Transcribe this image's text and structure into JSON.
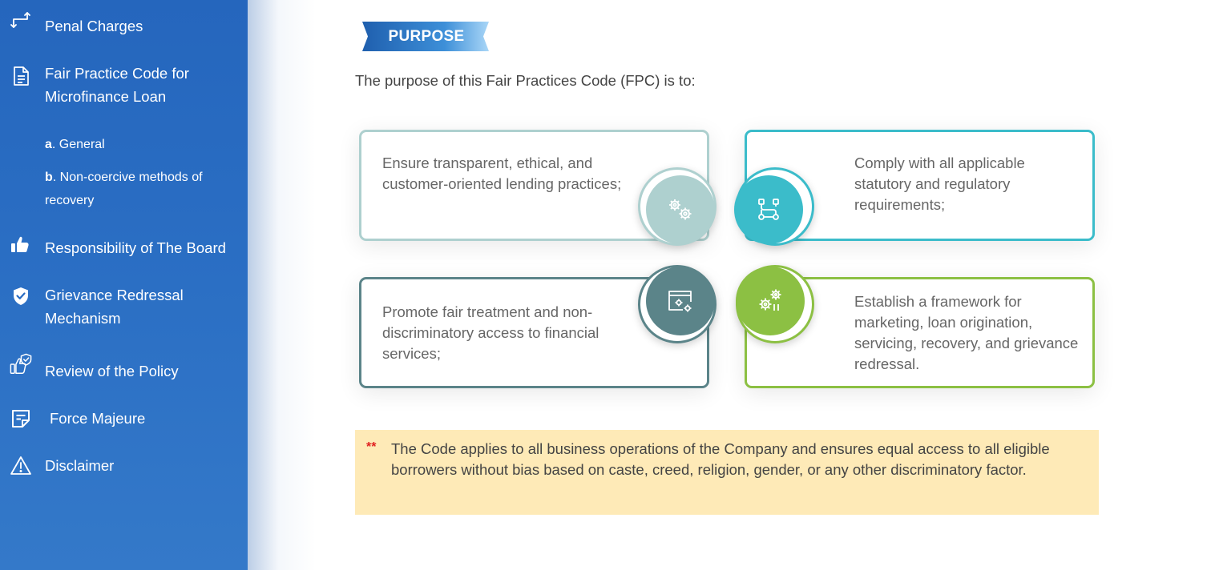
{
  "sidebar": {
    "items": [
      {
        "label": "Penal Charges",
        "icon": "transfer-arrows-icon"
      },
      {
        "label": "Fair Practice Code for Microfinance Loan",
        "icon": "document-icon"
      },
      {
        "label": "Responsibility of The Board",
        "icon": "thumbs-up-icon"
      },
      {
        "label": "Grievance Redressal Mechanism",
        "icon": "shield-check-icon"
      },
      {
        "label": "Review of the Policy",
        "icon": "thumbs-up-shield-icon"
      },
      {
        "label": "Force Majeure",
        "icon": "note-edit-icon"
      },
      {
        "label": "Disclaimer",
        "icon": "warning-icon"
      }
    ],
    "subitems": [
      {
        "marker": "a",
        "label": ". General"
      },
      {
        "marker": "b",
        "label": ". Non-coercive methods of recovery"
      }
    ]
  },
  "main": {
    "badge": "PURPOSE",
    "intro": "The purpose of this Fair Practices Code (FPC) is to:",
    "cards": [
      {
        "text": "Ensure transparent, ethical, and customer-oriented lending practices;",
        "icon": "gears-icon",
        "color": "#aed0cf"
      },
      {
        "text": "Comply with all applicable statutory and regulatory requirements;",
        "icon": "workflow-icon",
        "color": "#3bbcca"
      },
      {
        "text": "Promote fair treatment and non-discriminatory access to financial services;",
        "icon": "browser-settings-icon",
        "color": "#5b8489"
      },
      {
        "text": "Establish a framework for marketing, loan origination, servicing, recovery, and grievance redressal.",
        "icon": "gears-bars-icon",
        "color": "#8cc043"
      }
    ],
    "note": {
      "stars": "**",
      "text": "The Code applies to all business operations of the Company and ensures equal access to all eligible borrowers without bias based on caste, creed, religion, gender, or any other discriminatory factor."
    }
  }
}
